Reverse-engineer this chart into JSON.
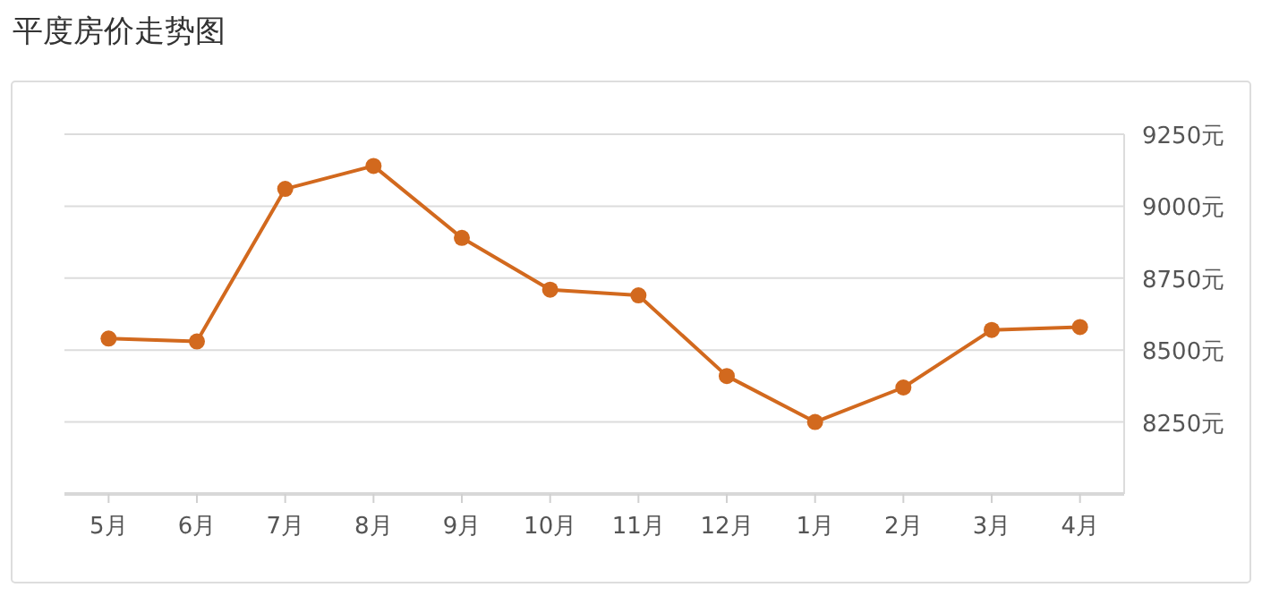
{
  "chart_data": {
    "type": "line",
    "title": "平度房价走势图",
    "categories": [
      "5月",
      "6月",
      "7月",
      "8月",
      "9月",
      "10月",
      "11月",
      "12月",
      "1月",
      "2月",
      "3月",
      "4月"
    ],
    "series": [
      {
        "color": "#d2691e",
        "values": [
          8540,
          8530,
          9060,
          9140,
          8890,
          8710,
          8690,
          8410,
          8250,
          8370,
          8570,
          8580
        ]
      }
    ],
    "ylim": [
      8000,
      9250
    ],
    "yticks": [
      {
        "value": 8250,
        "label": "8250元"
      },
      {
        "value": 8500,
        "label": "8500元"
      },
      {
        "value": 8750,
        "label": "8750元"
      },
      {
        "value": 9000,
        "label": "9000元"
      },
      {
        "value": 9250,
        "label": "9250元"
      }
    ],
    "grid": "y",
    "marker": "circle",
    "line_style": "solid"
  }
}
